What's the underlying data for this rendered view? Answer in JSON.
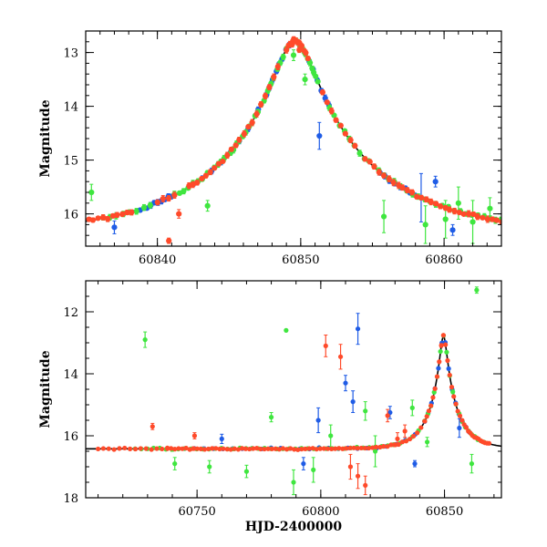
{
  "chart_data": [
    {
      "type": "scatter",
      "title": "",
      "xlabel": "",
      "ylabel": "Magnitude",
      "xlim": [
        60835,
        60864
      ],
      "ylim": [
        16.6,
        12.6
      ],
      "y_inverted": true,
      "x_ticks": [
        60840,
        60850,
        60860
      ],
      "x_tick_labels": [
        "60840",
        "60850",
        "60860"
      ],
      "y_ticks": [
        13,
        14,
        15,
        16
      ],
      "y_tick_labels": [
        "13",
        "14",
        "15",
        "16"
      ],
      "grid": false,
      "legend": "none",
      "model": {
        "name": "",
        "color": "#000000",
        "t0": 60849.6,
        "u0": 0.12,
        "tE": 11,
        "baseline": 16.42,
        "peak": 12.78
      },
      "series": [
        {
          "color": "#ff4a2a",
          "segments": [
            [
              60835.2,
              60838.2,
              10
            ],
            [
              60840.0,
              60841.2,
              4
            ],
            [
              60842.2,
              60848.4,
              22
            ],
            [
              60849.0,
              60850.5,
              12
            ],
            [
              60851.5,
              60853.8,
              8
            ],
            [
              60854.5,
              60864.0,
              30
            ]
          ],
          "outliers": [
            {
              "x": 60840.8,
              "y": 16.5,
              "err": 0.05
            },
            {
              "x": 60841.5,
              "y": 16.0,
              "err": 0.08
            },
            {
              "x": 60849.4,
              "y": 12.85,
              "err": 0.05
            },
            {
              "x": 60849.9,
              "y": 12.95,
              "err": 0.05
            }
          ]
        },
        {
          "color": "#1f5ce6",
          "segments": [
            [
              60838.8,
              60841.0,
              10
            ],
            [
              60842.5,
              60847.0,
              8
            ],
            [
              60847.6,
              60849.2,
              8
            ],
            [
              60850.6,
              60852.0,
              6
            ],
            [
              60855.5,
              60858.0,
              8
            ]
          ],
          "outliers": [
            {
              "x": 60837.0,
              "y": 16.25,
              "err": 0.12
            },
            {
              "x": 60851.3,
              "y": 14.55,
              "err": 0.25
            },
            {
              "x": 60858.4,
              "y": 15.7,
              "err": 0.45
            },
            {
              "x": 60859.4,
              "y": 15.4,
              "err": 0.1
            },
            {
              "x": 60860.6,
              "y": 16.3,
              "err": 0.1
            }
          ]
        },
        {
          "color": "#3fe63f",
          "segments": [
            [
              60836.2,
              60839.5,
              8
            ],
            [
              60841.2,
              60843.5,
              8
            ],
            [
              60844.0,
              60849.0,
              24
            ],
            [
              60849.5,
              60849.9,
              4
            ],
            [
              60850.2,
              60851.2,
              8
            ],
            [
              60852.0,
              60856.5,
              14
            ],
            [
              60857.0,
              60864.0,
              18
            ]
          ],
          "outliers": [
            {
              "x": 60835.4,
              "y": 15.6,
              "err": 0.15
            },
            {
              "x": 60843.5,
              "y": 15.85,
              "err": 0.1
            },
            {
              "x": 60849.5,
              "y": 13.05,
              "err": 0.1
            },
            {
              "x": 60850.3,
              "y": 13.5,
              "err": 0.1
            },
            {
              "x": 60855.8,
              "y": 16.05,
              "err": 0.3
            },
            {
              "x": 60858.7,
              "y": 16.2,
              "err": 0.35
            },
            {
              "x": 60860.1,
              "y": 16.1,
              "err": 0.35
            },
            {
              "x": 60861.0,
              "y": 15.8,
              "err": 0.3
            },
            {
              "x": 60862.0,
              "y": 16.15,
              "err": 0.4
            },
            {
              "x": 60863.2,
              "y": 15.9,
              "err": 0.2
            }
          ]
        }
      ]
    },
    {
      "type": "scatter",
      "title": "",
      "xlabel": "HJD-2400000",
      "ylabel": "Magnitude",
      "xlim": [
        60705,
        60873
      ],
      "ylim": [
        18,
        11
      ],
      "y_inverted": true,
      "x_ticks": [
        60750,
        60800,
        60850
      ],
      "x_tick_labels": [
        "60750",
        "60800",
        "60850"
      ],
      "y_ticks": [
        12,
        14,
        16,
        18
      ],
      "y_tick_labels": [
        "12",
        "14",
        "16",
        "18"
      ],
      "grid": false,
      "legend": "none",
      "model": {
        "name": "",
        "color": "#000000",
        "t0": 60849.6,
        "u0": 0.12,
        "tE": 11,
        "baseline": 16.42,
        "peak": 12.78
      },
      "series": [
        {
          "color": "#ff4a2a",
          "segments": [
            [
              60710,
              60738,
              14
            ],
            [
              60738,
              60842,
              70
            ],
            [
              60842,
              60868,
              32
            ]
          ],
          "outliers": [
            {
              "x": 60732,
              "y": 15.7,
              "err": 0.1
            },
            {
              "x": 60749,
              "y": 16.0,
              "err": 0.1
            },
            {
              "x": 60802,
              "y": 13.1,
              "err": 0.35
            },
            {
              "x": 60808,
              "y": 13.45,
              "err": 0.4
            },
            {
              "x": 60812,
              "y": 17.0,
              "err": 0.4
            },
            {
              "x": 60815,
              "y": 17.3,
              "err": 0.4
            },
            {
              "x": 60818,
              "y": 17.6,
              "err": 0.3
            },
            {
              "x": 60827,
              "y": 15.35,
              "err": 0.2
            },
            {
              "x": 60831,
              "y": 16.1,
              "err": 0.2
            },
            {
              "x": 60834,
              "y": 15.85,
              "err": 0.2
            }
          ]
        },
        {
          "color": "#1f5ce6",
          "segments": [
            [
              60745,
              60842,
              26
            ],
            [
              60842,
              60860,
              14
            ]
          ],
          "outliers": [
            {
              "x": 60760,
              "y": 16.1,
              "err": 0.15
            },
            {
              "x": 60793,
              "y": 16.9,
              "err": 0.2
            },
            {
              "x": 60799,
              "y": 15.5,
              "err": 0.4
            },
            {
              "x": 60810,
              "y": 14.3,
              "err": 0.25
            },
            {
              "x": 60813,
              "y": 14.9,
              "err": 0.35
            },
            {
              "x": 60815,
              "y": 12.55,
              "err": 0.5
            },
            {
              "x": 60828,
              "y": 15.25,
              "err": 0.2
            },
            {
              "x": 60838,
              "y": 16.9,
              "err": 0.1
            },
            {
              "x": 60856,
              "y": 15.75,
              "err": 0.3
            }
          ]
        },
        {
          "color": "#3fe63f",
          "segments": [
            [
              60725,
              60842,
              48
            ],
            [
              60842,
              60866,
              20
            ]
          ],
          "outliers": [
            {
              "x": 60729,
              "y": 12.9,
              "err": 0.25
            },
            {
              "x": 60741,
              "y": 16.9,
              "err": 0.2
            },
            {
              "x": 60755,
              "y": 17.0,
              "err": 0.2
            },
            {
              "x": 60770,
              "y": 17.15,
              "err": 0.2
            },
            {
              "x": 60780,
              "y": 15.4,
              "err": 0.15
            },
            {
              "x": 60786,
              "y": 12.6,
              "err": 0.05
            },
            {
              "x": 60789,
              "y": 17.5,
              "err": 0.4
            },
            {
              "x": 60797,
              "y": 17.1,
              "err": 0.4
            },
            {
              "x": 60804,
              "y": 16.0,
              "err": 0.35
            },
            {
              "x": 60818,
              "y": 15.2,
              "err": 0.3
            },
            {
              "x": 60822,
              "y": 16.5,
              "err": 0.5
            },
            {
              "x": 60837,
              "y": 15.1,
              "err": 0.25
            },
            {
              "x": 60843,
              "y": 16.2,
              "err": 0.15
            },
            {
              "x": 60861,
              "y": 16.9,
              "err": 0.3
            },
            {
              "x": 60863,
              "y": 11.3,
              "err": 0.1
            }
          ]
        }
      ]
    }
  ]
}
